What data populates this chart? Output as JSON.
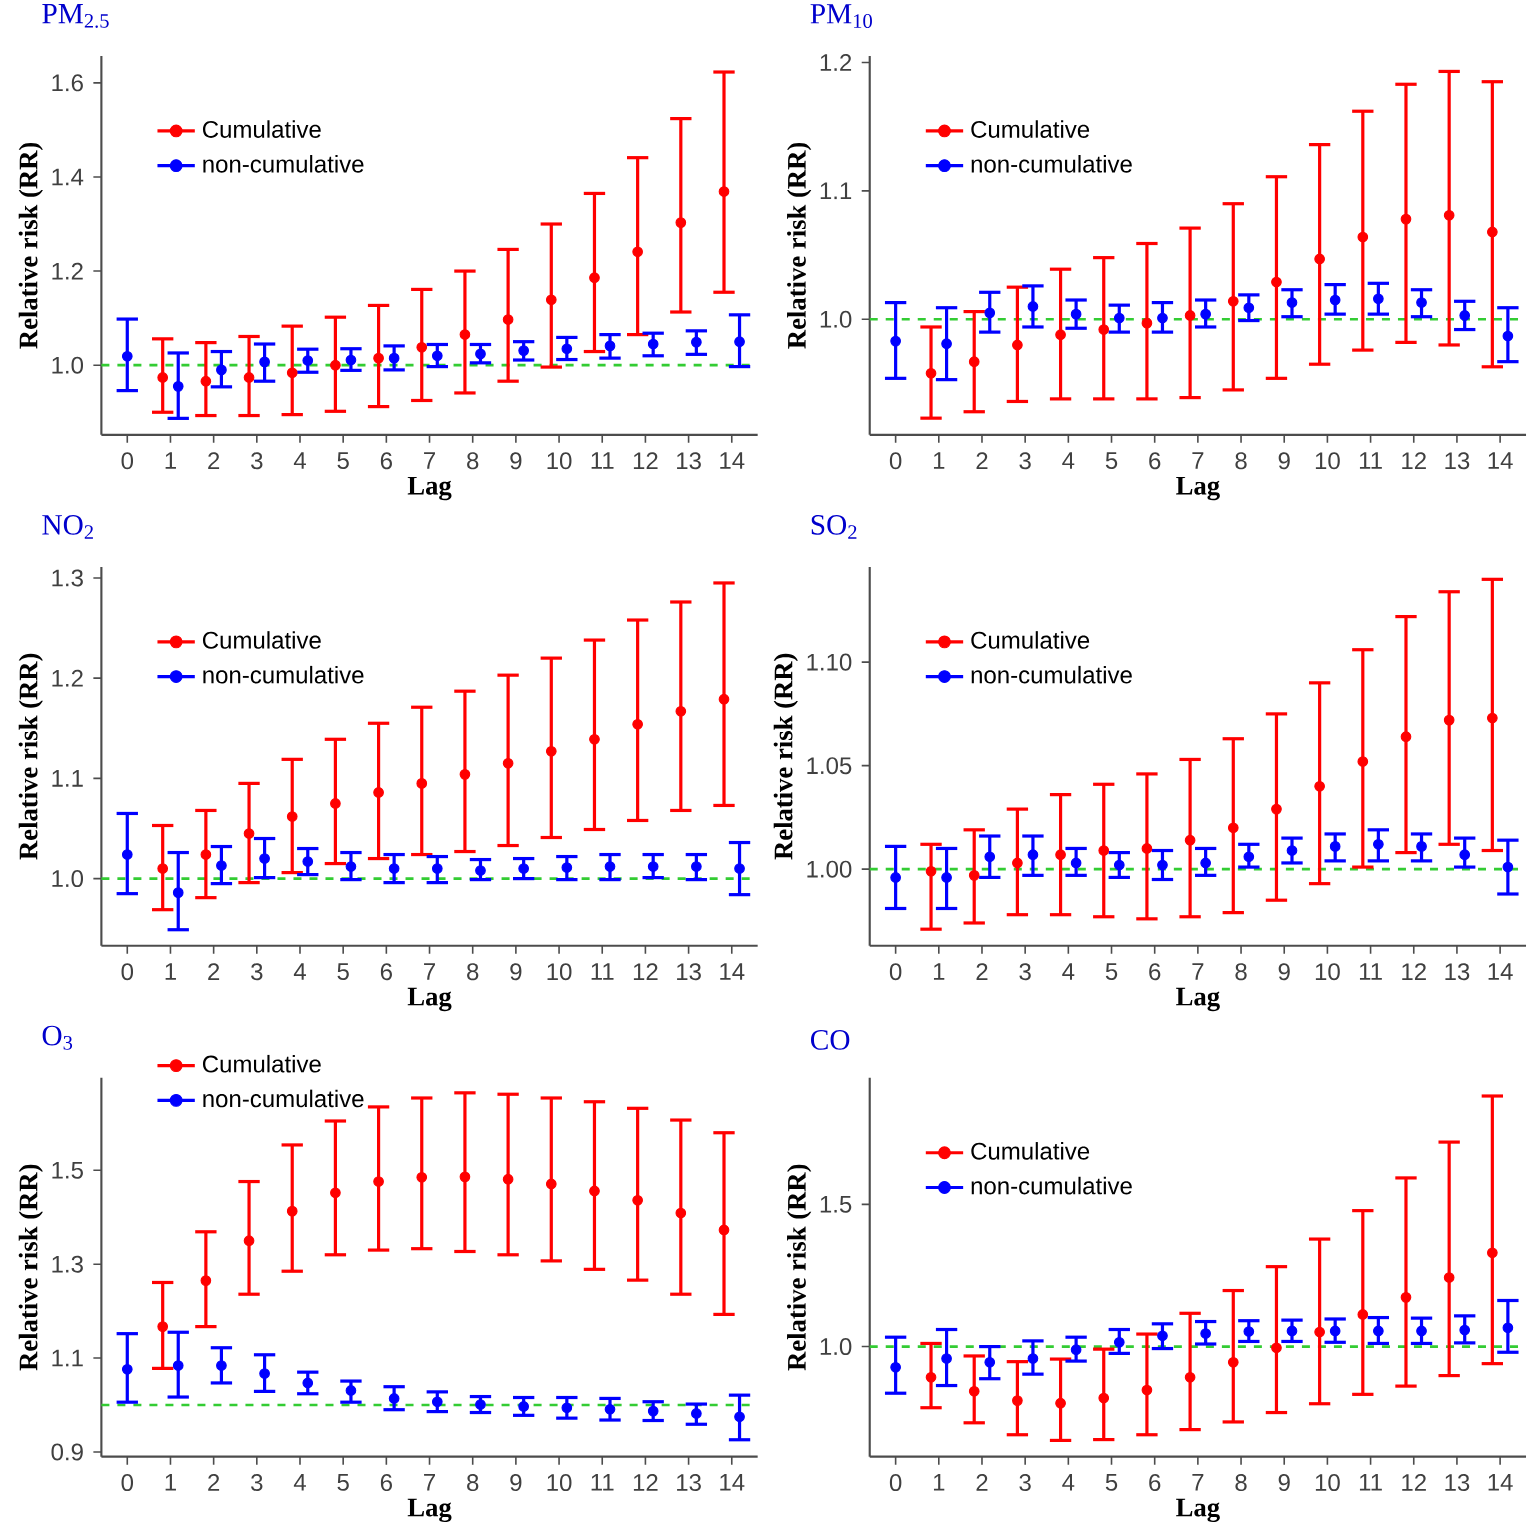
{
  "chart_data": [
    {
      "type": "scatter",
      "title": "PM$_{2.5}$",
      "xlabel": "Lag",
      "ylabel": "Relative risk (RR)",
      "categories": [
        "0",
        "1",
        "2",
        "3",
        "4",
        "5",
        "6",
        "7",
        "8",
        "9",
        "10",
        "11",
        "12",
        "13",
        "14"
      ],
      "series": [
        {
          "name": "Cumulative",
          "color": "#ff0000",
          "values": [
            null,
            0.974,
            0.966,
            0.974,
            0.984,
            1.0,
            1.015,
            1.038,
            1.065,
            1.097,
            1.139,
            1.186,
            1.241,
            1.303,
            1.369
          ],
          "errors": [
            null,
            [
              0.9,
              1.056
            ],
            [
              0.893,
              1.048
            ],
            [
              0.893,
              1.061
            ],
            [
              0.895,
              1.083
            ],
            [
              0.902,
              1.102
            ],
            [
              0.912,
              1.127
            ],
            [
              0.925,
              1.161
            ],
            [
              0.941,
              1.2
            ],
            [
              0.966,
              1.246
            ],
            [
              0.996,
              1.3
            ],
            [
              1.029,
              1.365
            ],
            [
              1.065,
              1.441
            ],
            [
              1.113,
              1.524
            ],
            [
              1.155,
              1.623
            ]
          ]
        },
        {
          "name": "non-cumulative",
          "color": "#0000ff",
          "values": [
            1.019,
            0.955,
            0.99,
            1.007,
            1.01,
            1.011,
            1.015,
            1.02,
            1.024,
            1.031,
            1.035,
            1.041,
            1.045,
            1.049,
            1.05
          ],
          "errors": [
            [
              0.946,
              1.098
            ],
            [
              0.887,
              1.026
            ],
            [
              0.954,
              1.029
            ],
            [
              0.966,
              1.045
            ],
            [
              0.985,
              1.034
            ],
            [
              0.989,
              1.035
            ],
            [
              0.99,
              1.041
            ],
            [
              0.997,
              1.044
            ],
            [
              1.005,
              1.044
            ],
            [
              1.011,
              1.05
            ],
            [
              1.012,
              1.059
            ],
            [
              1.015,
              1.065
            ],
            [
              1.02,
              1.068
            ],
            [
              1.023,
              1.073
            ],
            [
              0.997,
              1.107
            ]
          ]
        }
      ],
      "ylim": [
        0.852,
        1.657
      ],
      "yticks": [
        {
          "value": 1.0,
          "label": "1.0"
        },
        {
          "value": 1.2,
          "label": "1.2"
        },
        {
          "value": 1.4,
          "label": "1.4"
        },
        {
          "value": 1.6,
          "label": "1.6"
        }
      ],
      "ref_lines": [
        {
          "axis": "y",
          "value": 1.0,
          "color": "#33cc33",
          "line_style": "dashed"
        }
      ],
      "legend": "top left",
      "marker": "circle"
    },
    {
      "type": "scatter",
      "title": "PM$_{10}$",
      "xlabel": "Lag",
      "ylabel": "Relative risk (RR)",
      "categories": [
        "0",
        "1",
        "2",
        "3",
        "4",
        "5",
        "6",
        "7",
        "8",
        "9",
        "10",
        "11",
        "12",
        "13",
        "14"
      ],
      "series": [
        {
          "name": "Cumulative",
          "color": "#ff0000",
          "values": [
            null,
            0.958,
            0.967,
            0.98,
            0.988,
            0.992,
            0.997,
            1.003,
            1.014,
            1.029,
            1.047,
            1.064,
            1.078,
            1.081,
            1.068
          ],
          "errors": [
            null,
            [
              0.923,
              0.994
            ],
            [
              0.928,
              1.006
            ],
            [
              0.936,
              1.025
            ],
            [
              0.938,
              1.039
            ],
            [
              0.938,
              1.048
            ],
            [
              0.938,
              1.059
            ],
            [
              0.939,
              1.071
            ],
            [
              0.945,
              1.09
            ],
            [
              0.954,
              1.111
            ],
            [
              0.965,
              1.136
            ],
            [
              0.976,
              1.162
            ],
            [
              0.982,
              1.183
            ],
            [
              0.98,
              1.193
            ],
            [
              0.963,
              1.185
            ]
          ]
        },
        {
          "name": "non-cumulative",
          "color": "#0000ff",
          "values": [
            0.983,
            0.981,
            1.005,
            1.01,
            1.004,
            1.001,
            1.001,
            1.004,
            1.009,
            1.013,
            1.015,
            1.016,
            1.013,
            1.003,
            0.987
          ],
          "errors": [
            [
              0.954,
              1.013
            ],
            [
              0.953,
              1.009
            ],
            [
              0.99,
              1.021
            ],
            [
              0.994,
              1.026
            ],
            [
              0.993,
              1.015
            ],
            [
              0.99,
              1.011
            ],
            [
              0.99,
              1.013
            ],
            [
              0.994,
              1.015
            ],
            [
              0.999,
              1.019
            ],
            [
              1.002,
              1.023
            ],
            [
              1.004,
              1.027
            ],
            [
              1.004,
              1.028
            ],
            [
              1.002,
              1.023
            ],
            [
              0.992,
              1.014
            ],
            [
              0.967,
              1.009
            ]
          ]
        }
      ],
      "ylim": [
        0.91,
        1.205
      ],
      "yticks": [
        {
          "value": 1.0,
          "label": "1.0"
        },
        {
          "value": 1.1,
          "label": "1.1"
        },
        {
          "value": 1.2,
          "label": "1.2"
        }
      ],
      "ref_lines": [
        {
          "axis": "y",
          "value": 1.0,
          "color": "#33cc33",
          "line_style": "dashed"
        }
      ],
      "legend": "top left",
      "marker": "circle"
    },
    {
      "type": "scatter",
      "title": "NO$_{2}$",
      "xlabel": "Lag",
      "ylabel": "Relative risk (RR)",
      "categories": [
        "0",
        "1",
        "2",
        "3",
        "4",
        "5",
        "6",
        "7",
        "8",
        "9",
        "10",
        "11",
        "12",
        "13",
        "14"
      ],
      "series": [
        {
          "name": "Cumulative",
          "color": "#ff0000",
          "values": [
            null,
            1.01,
            1.024,
            1.045,
            1.062,
            1.075,
            1.086,
            1.095,
            1.104,
            1.115,
            1.127,
            1.139,
            1.154,
            1.167,
            1.179
          ],
          "errors": [
            null,
            [
              0.969,
              1.053
            ],
            [
              0.981,
              1.068
            ],
            [
              0.996,
              1.095
            ],
            [
              1.006,
              1.119
            ],
            [
              1.015,
              1.139
            ],
            [
              1.02,
              1.155
            ],
            [
              1.024,
              1.171
            ],
            [
              1.027,
              1.187
            ],
            [
              1.033,
              1.203
            ],
            [
              1.041,
              1.22
            ],
            [
              1.049,
              1.238
            ],
            [
              1.058,
              1.258
            ],
            [
              1.068,
              1.276
            ],
            [
              1.073,
              1.295
            ]
          ]
        },
        {
          "name": "non-cumulative",
          "color": "#0000ff",
          "values": [
            1.024,
            0.986,
            1.013,
            1.02,
            1.017,
            1.012,
            1.01,
            1.01,
            1.008,
            1.01,
            1.011,
            1.012,
            1.012,
            1.012,
            1.01
          ],
          "errors": [
            [
              0.985,
              1.065
            ],
            [
              0.949,
              1.026
            ],
            [
              0.995,
              1.032
            ],
            [
              1.001,
              1.04
            ],
            [
              1.004,
              1.03
            ],
            [
              0.999,
              1.026
            ],
            [
              0.996,
              1.024
            ],
            [
              0.996,
              1.022
            ],
            [
              0.999,
              1.019
            ],
            [
              1.0,
              1.02
            ],
            [
              0.999,
              1.022
            ],
            [
              0.999,
              1.024
            ],
            [
              1.001,
              1.024
            ],
            [
              0.999,
              1.024
            ],
            [
              0.984,
              1.036
            ]
          ]
        }
      ],
      "ylim": [
        0.933,
        1.311
      ],
      "yticks": [
        {
          "value": 1.0,
          "label": "1.0"
        },
        {
          "value": 1.1,
          "label": "1.1"
        },
        {
          "value": 1.2,
          "label": "1.2"
        },
        {
          "value": 1.3,
          "label": "1.3"
        }
      ],
      "ref_lines": [
        {
          "axis": "y",
          "value": 1.0,
          "color": "#33cc33",
          "line_style": "dashed"
        }
      ],
      "legend": "top left",
      "marker": "circle"
    },
    {
      "type": "scatter",
      "title": "SO$_{2}$",
      "xlabel": "Lag",
      "ylabel": "Relative risk (RR)",
      "categories": [
        "0",
        "1",
        "2",
        "3",
        "4",
        "5",
        "6",
        "7",
        "8",
        "9",
        "10",
        "11",
        "12",
        "13",
        "14"
      ],
      "series": [
        {
          "name": "Cumulative",
          "color": "#ff0000",
          "values": [
            null,
            0.999,
            0.997,
            1.003,
            1.007,
            1.009,
            1.01,
            1.014,
            1.02,
            1.029,
            1.04,
            1.052,
            1.064,
            1.072,
            1.073
          ],
          "errors": [
            null,
            [
              0.971,
              1.012
            ],
            [
              0.974,
              1.019
            ],
            [
              0.978,
              1.029
            ],
            [
              0.978,
              1.036
            ],
            [
              0.977,
              1.041
            ],
            [
              0.976,
              1.046
            ],
            [
              0.977,
              1.053
            ],
            [
              0.979,
              1.063
            ],
            [
              0.985,
              1.075
            ],
            [
              0.993,
              1.09
            ],
            [
              1.001,
              1.106
            ],
            [
              1.008,
              1.122
            ],
            [
              1.012,
              1.134
            ],
            [
              1.009,
              1.14
            ]
          ]
        },
        {
          "name": "non-cumulative",
          "color": "#0000ff",
          "values": [
            0.996,
            0.996,
            1.006,
            1.007,
            1.003,
            1.002,
            1.002,
            1.003,
            1.006,
            1.009,
            1.011,
            1.012,
            1.011,
            1.007,
            1.001
          ],
          "errors": [
            [
              0.981,
              1.011
            ],
            [
              0.981,
              1.01
            ],
            [
              0.996,
              1.016
            ],
            [
              0.997,
              1.016
            ],
            [
              0.997,
              1.01
            ],
            [
              0.996,
              1.008
            ],
            [
              0.995,
              1.009
            ],
            [
              0.997,
              1.01
            ],
            [
              1.001,
              1.012
            ],
            [
              1.003,
              1.015
            ],
            [
              1.004,
              1.017
            ],
            [
              1.004,
              1.019
            ],
            [
              1.004,
              1.017
            ],
            [
              1.001,
              1.015
            ],
            [
              0.988,
              1.014
            ]
          ]
        }
      ],
      "ylim": [
        0.963,
        1.146
      ],
      "yticks": [
        {
          "value": 1.0,
          "label": "1.00"
        },
        {
          "value": 1.05,
          "label": "1.05"
        },
        {
          "value": 1.1,
          "label": "1.10"
        }
      ],
      "ref_lines": [
        {
          "axis": "y",
          "value": 1.0,
          "color": "#33cc33",
          "line_style": "dashed"
        }
      ],
      "legend": "top left",
      "marker": "circle"
    },
    {
      "type": "scatter",
      "title": "O$_{3}$",
      "xlabel": "Lag",
      "ylabel": "Relative risk (RR)",
      "categories": [
        "0",
        "1",
        "2",
        "3",
        "4",
        "5",
        "6",
        "7",
        "8",
        "9",
        "10",
        "11",
        "12",
        "13",
        "14"
      ],
      "series": [
        {
          "name": "Cumulative",
          "color": "#ff0000",
          "values": [
            null,
            1.167,
            1.265,
            1.35,
            1.413,
            1.452,
            1.476,
            1.485,
            1.486,
            1.481,
            1.471,
            1.456,
            1.436,
            1.409,
            1.373
          ],
          "errors": [
            null,
            [
              1.078,
              1.261
            ],
            [
              1.167,
              1.369
            ],
            [
              1.236,
              1.476
            ],
            [
              1.285,
              1.554
            ],
            [
              1.32,
              1.605
            ],
            [
              1.33,
              1.635
            ],
            [
              1.333,
              1.654
            ],
            [
              1.327,
              1.665
            ],
            [
              1.32,
              1.662
            ],
            [
              1.307,
              1.654
            ],
            [
              1.289,
              1.646
            ],
            [
              1.266,
              1.632
            ],
            [
              1.236,
              1.607
            ],
            [
              1.193,
              1.58
            ]
          ]
        },
        {
          "name": "non-cumulative",
          "color": "#0000ff",
          "values": [
            1.076,
            1.084,
            1.084,
            1.067,
            1.047,
            1.031,
            1.014,
            1.007,
            1.001,
            0.997,
            0.994,
            0.991,
            0.987,
            0.982,
            0.975
          ],
          "errors": [
            [
              1.006,
              1.152
            ],
            [
              1.017,
              1.155
            ],
            [
              1.047,
              1.122
            ],
            [
              1.029,
              1.107
            ],
            [
              1.024,
              1.07
            ],
            [
              1.006,
              1.051
            ],
            [
              0.99,
              1.039
            ],
            [
              0.986,
              1.028
            ],
            [
              0.984,
              1.018
            ],
            [
              0.978,
              1.016
            ],
            [
              0.972,
              1.016
            ],
            [
              0.968,
              1.014
            ],
            [
              0.967,
              1.007
            ],
            [
              0.959,
              1.002
            ],
            [
              0.926,
              1.021
            ]
          ]
        }
      ],
      "ylim": [
        0.89,
        1.697
      ],
      "yticks": [
        {
          "value": 0.9,
          "label": "0.9"
        },
        {
          "value": 1.1,
          "label": "1.1"
        },
        {
          "value": 1.3,
          "label": "1.3"
        },
        {
          "value": 1.5,
          "label": "1.5"
        }
      ],
      "ref_lines": [
        {
          "axis": "y",
          "value": 1.0,
          "color": "#33cc33",
          "line_style": "dashed"
        }
      ],
      "legend": "top left",
      "marker": "circle"
    },
    {
      "type": "scatter",
      "title": "CO",
      "xlabel": "Lag",
      "ylabel": "Relative risk (RR)",
      "categories": [
        "0",
        "1",
        "2",
        "3",
        "4",
        "5",
        "6",
        "7",
        "8",
        "9",
        "10",
        "11",
        "12",
        "13",
        "14"
      ],
      "series": [
        {
          "name": "Cumulative",
          "color": "#ff0000",
          "values": [
            null,
            0.892,
            0.843,
            0.81,
            0.801,
            0.819,
            0.847,
            0.892,
            0.945,
            0.996,
            1.051,
            1.113,
            1.173,
            1.243,
            1.33
          ],
          "errors": [
            null,
            [
              0.785,
              1.011
            ],
            [
              0.732,
              0.967
            ],
            [
              0.69,
              0.947
            ],
            [
              0.67,
              0.956
            ],
            [
              0.673,
              0.991
            ],
            [
              0.69,
              1.044
            ],
            [
              0.708,
              1.117
            ],
            [
              0.735,
              1.197
            ],
            [
              0.768,
              1.281
            ],
            [
              0.799,
              1.378
            ],
            [
              0.832,
              1.478
            ],
            [
              0.861,
              1.593
            ],
            [
              0.898,
              1.719
            ],
            [
              0.94,
              1.881
            ]
          ]
        },
        {
          "name": "non-cumulative",
          "color": "#0000ff",
          "values": [
            0.927,
            0.958,
            0.945,
            0.958,
            0.989,
            1.015,
            1.038,
            1.046,
            1.053,
            1.055,
            1.055,
            1.055,
            1.055,
            1.058,
            1.066
          ],
          "errors": [
            [
              0.836,
              1.033
            ],
            [
              0.863,
              1.06
            ],
            [
              0.887,
              1.0
            ],
            [
              0.903,
              1.02
            ],
            [
              0.949,
              1.033
            ],
            [
              0.976,
              1.06
            ],
            [
              0.993,
              1.08
            ],
            [
              1.009,
              1.088
            ],
            [
              1.018,
              1.091
            ],
            [
              1.018,
              1.093
            ],
            [
              1.015,
              1.097
            ],
            [
              1.011,
              1.102
            ],
            [
              1.011,
              1.1
            ],
            [
              1.013,
              1.108
            ],
            [
              0.98,
              1.162
            ]
          ]
        }
      ],
      "ylim": [
        0.613,
        1.945
      ],
      "yticks": [
        {
          "value": 1.0,
          "label": "1.0"
        },
        {
          "value": 1.5,
          "label": "1.5"
        }
      ],
      "ref_lines": [
        {
          "axis": "y",
          "value": 1.0,
          "color": "#33cc33",
          "line_style": "dashed"
        }
      ],
      "legend": "top left",
      "marker": "circle"
    }
  ]
}
